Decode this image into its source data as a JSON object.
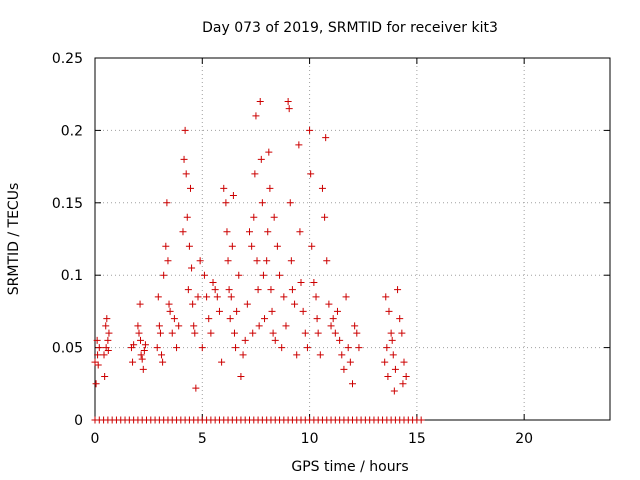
{
  "chart_data": {
    "type": "scatter",
    "title": "Day 073 of 2019, SRMTID for receiver kit3",
    "xlabel": "GPS time / hours",
    "ylabel": "SRMTID / TECUs",
    "xlim": [
      0,
      24
    ],
    "ylim": [
      0,
      0.25
    ],
    "xticks": [
      0,
      5,
      10,
      15,
      20
    ],
    "yticks": [
      0,
      0.05,
      0.1,
      0.15,
      0.2,
      0.25
    ],
    "xtick_labels": [
      "0",
      "5",
      "10",
      "15",
      "20"
    ],
    "ytick_labels": [
      "0",
      "0.05",
      "0.1",
      "0.15",
      "0.2",
      "0.25"
    ],
    "grid": true,
    "marker": "+",
    "color": "#cc0000",
    "series": [
      {
        "name": "SRMTID",
        "x": [
          0.0,
          0.05,
          0.1,
          0.12,
          0.15,
          0.2,
          0.42,
          0.45,
          0.5,
          0.52,
          0.55,
          0.6,
          0.62,
          0.65,
          1.7,
          1.75,
          1.8,
          2.0,
          2.05,
          2.1,
          2.12,
          2.15,
          2.2,
          2.25,
          2.3,
          2.35,
          2.9,
          2.95,
          3.0,
          3.05,
          3.1,
          3.15,
          3.2,
          3.3,
          3.35,
          3.4,
          3.45,
          3.5,
          3.6,
          3.7,
          3.8,
          3.9,
          4.1,
          4.15,
          4.2,
          4.25,
          4.3,
          4.35,
          4.4,
          4.45,
          4.5,
          4.55,
          4.6,
          4.65,
          4.7,
          4.8,
          4.9,
          5.0,
          5.1,
          5.2,
          5.3,
          5.4,
          5.5,
          5.6,
          5.7,
          5.8,
          5.9,
          6.0,
          6.1,
          6.15,
          6.2,
          6.25,
          6.3,
          6.35,
          6.4,
          6.45,
          6.5,
          6.55,
          6.6,
          6.7,
          6.8,
          6.9,
          7.0,
          7.1,
          7.2,
          7.3,
          7.35,
          7.4,
          7.45,
          7.5,
          7.55,
          7.6,
          7.65,
          7.7,
          7.75,
          7.8,
          7.85,
          7.9,
          8.0,
          8.05,
          8.1,
          8.15,
          8.2,
          8.25,
          8.3,
          8.35,
          8.4,
          8.5,
          8.6,
          8.7,
          8.8,
          8.9,
          9.0,
          9.05,
          9.1,
          9.15,
          9.2,
          9.3,
          9.4,
          9.5,
          9.55,
          9.6,
          9.7,
          9.8,
          9.9,
          10.0,
          10.05,
          10.1,
          10.2,
          10.3,
          10.35,
          10.4,
          10.5,
          10.6,
          10.7,
          10.75,
          10.8,
          10.9,
          11.0,
          11.1,
          11.2,
          11.3,
          11.4,
          11.5,
          11.6,
          11.7,
          11.8,
          11.9,
          12.0,
          12.1,
          12.2,
          12.3,
          13.5,
          13.55,
          13.6,
          13.65,
          13.7,
          13.8,
          13.85,
          13.9,
          13.95,
          14.0,
          14.1,
          14.2,
          14.3,
          14.35,
          14.4,
          14.5
        ],
        "y": [
          0.04,
          0.025,
          0.055,
          0.045,
          0.038,
          0.05,
          0.045,
          0.03,
          0.065,
          0.05,
          0.07,
          0.055,
          0.048,
          0.06,
          0.05,
          0.04,
          0.052,
          0.065,
          0.06,
          0.08,
          0.055,
          0.045,
          0.042,
          0.035,
          0.048,
          0.052,
          0.05,
          0.085,
          0.065,
          0.06,
          0.045,
          0.04,
          0.1,
          0.12,
          0.15,
          0.11,
          0.08,
          0.075,
          0.06,
          0.07,
          0.05,
          0.065,
          0.13,
          0.18,
          0.2,
          0.17,
          0.14,
          0.09,
          0.12,
          0.16,
          0.105,
          0.08,
          0.065,
          0.06,
          0.022,
          0.085,
          0.11,
          0.05,
          0.1,
          0.085,
          0.07,
          0.06,
          0.095,
          0.09,
          0.085,
          0.075,
          0.04,
          0.16,
          0.15,
          0.13,
          0.11,
          0.09,
          0.07,
          0.085,
          0.12,
          0.155,
          0.06,
          0.05,
          0.075,
          0.1,
          0.03,
          0.045,
          0.055,
          0.08,
          0.13,
          0.12,
          0.06,
          0.14,
          0.17,
          0.21,
          0.11,
          0.09,
          0.065,
          0.22,
          0.18,
          0.15,
          0.1,
          0.07,
          0.11,
          0.13,
          0.185,
          0.16,
          0.09,
          0.075,
          0.06,
          0.14,
          0.055,
          0.12,
          0.1,
          0.05,
          0.085,
          0.065,
          0.22,
          0.215,
          0.15,
          0.11,
          0.09,
          0.08,
          0.045,
          0.19,
          0.13,
          0.095,
          0.075,
          0.06,
          0.05,
          0.2,
          0.17,
          0.12,
          0.095,
          0.085,
          0.07,
          0.06,
          0.045,
          0.16,
          0.14,
          0.195,
          0.11,
          0.08,
          0.065,
          0.07,
          0.06,
          0.075,
          0.055,
          0.045,
          0.035,
          0.085,
          0.05,
          0.04,
          0.025,
          0.065,
          0.06,
          0.05,
          0.04,
          0.085,
          0.05,
          0.03,
          0.075,
          0.06,
          0.055,
          0.045,
          0.02,
          0.035,
          0.09,
          0.07,
          0.06,
          0.025,
          0.04,
          0.03
        ]
      },
      {
        "name": "SRMTID (zero values)",
        "x": [
          0.0,
          0.2,
          0.4,
          0.6,
          0.8,
          1.0,
          1.2,
          1.4,
          1.6,
          1.8,
          2.0,
          2.2,
          2.4,
          2.6,
          2.8,
          3.0,
          3.2,
          3.4,
          3.6,
          3.8,
          4.0,
          4.2,
          4.4,
          4.6,
          4.8,
          5.0,
          5.2,
          5.4,
          5.6,
          5.8,
          6.0,
          6.2,
          6.4,
          6.6,
          6.8,
          7.0,
          7.2,
          7.4,
          7.6,
          7.8,
          8.0,
          8.2,
          8.4,
          8.6,
          8.8,
          9.0,
          9.2,
          9.4,
          9.6,
          9.8,
          10.0,
          10.2,
          10.4,
          10.6,
          10.8,
          11.0,
          11.2,
          11.4,
          11.6,
          11.8,
          12.0,
          12.2,
          12.4,
          12.6,
          12.8,
          13.0,
          13.2,
          13.4,
          13.6,
          13.8,
          14.0,
          14.2,
          14.4,
          14.6,
          14.8,
          15.0,
          15.2
        ],
        "y": [
          0,
          0,
          0,
          0,
          0,
          0,
          0,
          0,
          0,
          0,
          0,
          0,
          0,
          0,
          0,
          0,
          0,
          0,
          0,
          0,
          0,
          0,
          0,
          0,
          0,
          0,
          0,
          0,
          0,
          0,
          0,
          0,
          0,
          0,
          0,
          0,
          0,
          0,
          0,
          0,
          0,
          0,
          0,
          0,
          0,
          0,
          0,
          0,
          0,
          0,
          0,
          0,
          0,
          0,
          0,
          0,
          0,
          0,
          0,
          0,
          0,
          0,
          0,
          0,
          0,
          0,
          0,
          0,
          0,
          0,
          0,
          0,
          0,
          0,
          0,
          0,
          0
        ]
      }
    ]
  }
}
